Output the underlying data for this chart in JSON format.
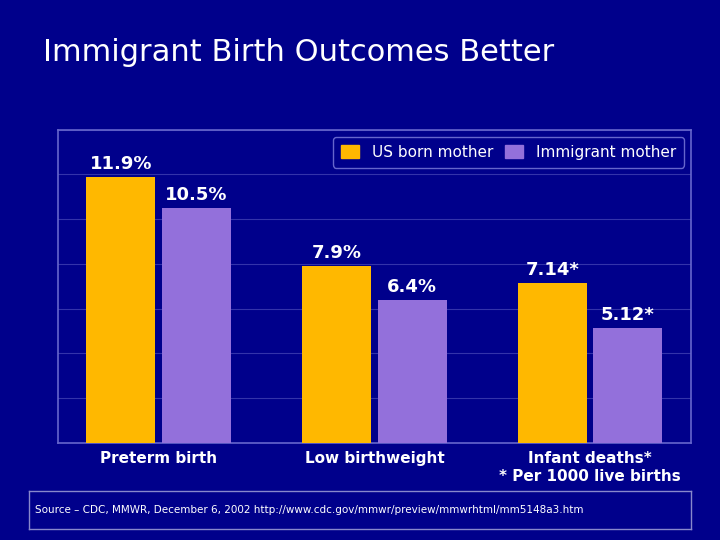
{
  "title": "Immigrant Birth Outcomes Better",
  "categories": [
    "Preterm birth",
    "Low birthweight",
    "Infant deaths*\n* Per 1000 live births"
  ],
  "us_born": [
    11.9,
    7.9,
    7.14
  ],
  "immigrant": [
    10.5,
    6.4,
    5.12
  ],
  "us_labels": [
    "11.9%",
    "7.9%",
    "7.14*"
  ],
  "imm_labels": [
    "10.5%",
    "6.4%",
    "5.12*"
  ],
  "us_color": "#FFB800",
  "imm_color": "#9370DB",
  "bg_color": "#00008B",
  "text_color": "#FFFFFF",
  "legend_us": "US born mother",
  "legend_imm": "Immigrant mother",
  "source_text": "Source – CDC, MMWR, December 6, 2002 http://www.cdc.gov/mmwr/preview/mmwrhtml/mm5148a3.htm",
  "ylim": [
    0,
    14
  ],
  "grid_color": "#3333AA",
  "axis_color": "#6666CC",
  "title_fontsize": 22,
  "label_fontsize": 11,
  "bar_value_fontsize": 13,
  "legend_fontsize": 11,
  "source_fontsize": 7.5
}
